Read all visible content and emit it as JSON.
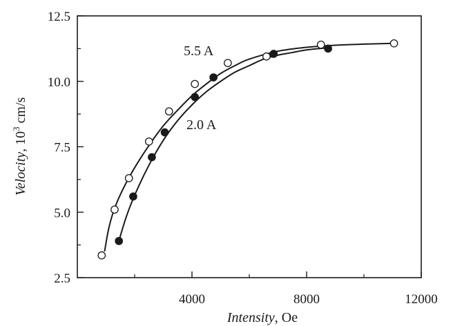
{
  "chart_data": {
    "type": "scatter",
    "title": "",
    "xlabel": {
      "italic": "Intensity",
      "rest": ", Oe"
    },
    "ylabel": {
      "italic": "Velocity",
      "rest": ", 10",
      "sup": "3",
      "tail": " cm/s"
    },
    "xlim": [
      0,
      12000
    ],
    "ylim": [
      2.5,
      12.5
    ],
    "x_ticks": [
      4000,
      8000,
      12000
    ],
    "x_tick_labels": [
      "4000",
      "8000",
      "12000"
    ],
    "y_ticks": [
      2.5,
      5.0,
      7.5,
      10.0,
      12.5
    ],
    "y_tick_labels": [
      "2.5",
      "5.0",
      "7.5",
      "10.0",
      "12.5"
    ],
    "grid": false,
    "legend": "none",
    "series": [
      {
        "name": "5.5 A",
        "marker": "open-circle",
        "points": [
          [
            850,
            3.35
          ],
          [
            1300,
            5.1
          ],
          [
            1800,
            6.3
          ],
          [
            2500,
            7.7
          ],
          [
            3200,
            8.85
          ],
          [
            4100,
            9.9
          ],
          [
            5250,
            10.7
          ],
          [
            6600,
            10.95
          ],
          [
            8500,
            11.4
          ],
          [
            11050,
            11.45
          ]
        ],
        "curve": [
          [
            950,
            3.5
          ],
          [
            1100,
            4.4
          ],
          [
            1300,
            5.15
          ],
          [
            1600,
            5.9
          ],
          [
            2000,
            6.7
          ],
          [
            2500,
            7.55
          ],
          [
            3000,
            8.3
          ],
          [
            3500,
            8.9
          ],
          [
            4000,
            9.45
          ],
          [
            4500,
            9.9
          ],
          [
            5000,
            10.3
          ],
          [
            5500,
            10.6
          ],
          [
            6000,
            10.85
          ],
          [
            7000,
            11.15
          ],
          [
            8000,
            11.3
          ],
          [
            9000,
            11.38
          ],
          [
            10000,
            11.42
          ],
          [
            11000,
            11.45
          ]
        ]
      },
      {
        "name": "2.0 A",
        "marker": "filled-circle",
        "points": [
          [
            1450,
            3.9
          ],
          [
            1950,
            5.6
          ],
          [
            2600,
            7.1
          ],
          [
            3050,
            8.05
          ],
          [
            4100,
            9.4
          ],
          [
            4750,
            10.15
          ],
          [
            6850,
            11.05
          ],
          [
            8750,
            11.25
          ]
        ],
        "curve": [
          [
            1450,
            3.9
          ],
          [
            1700,
            4.8
          ],
          [
            2000,
            5.65
          ],
          [
            2500,
            6.8
          ],
          [
            3000,
            7.75
          ],
          [
            3500,
            8.5
          ],
          [
            4000,
            9.1
          ],
          [
            4500,
            9.6
          ],
          [
            5000,
            10.0
          ],
          [
            5500,
            10.35
          ],
          [
            6000,
            10.6
          ],
          [
            6500,
            10.85
          ],
          [
            7000,
            11.0
          ],
          [
            7500,
            11.1
          ],
          [
            8000,
            11.2
          ],
          [
            8750,
            11.28
          ]
        ]
      }
    ],
    "annotations": [
      {
        "text": "5.5 A",
        "series": 0
      },
      {
        "text": "2.0 A",
        "series": 1
      }
    ]
  }
}
